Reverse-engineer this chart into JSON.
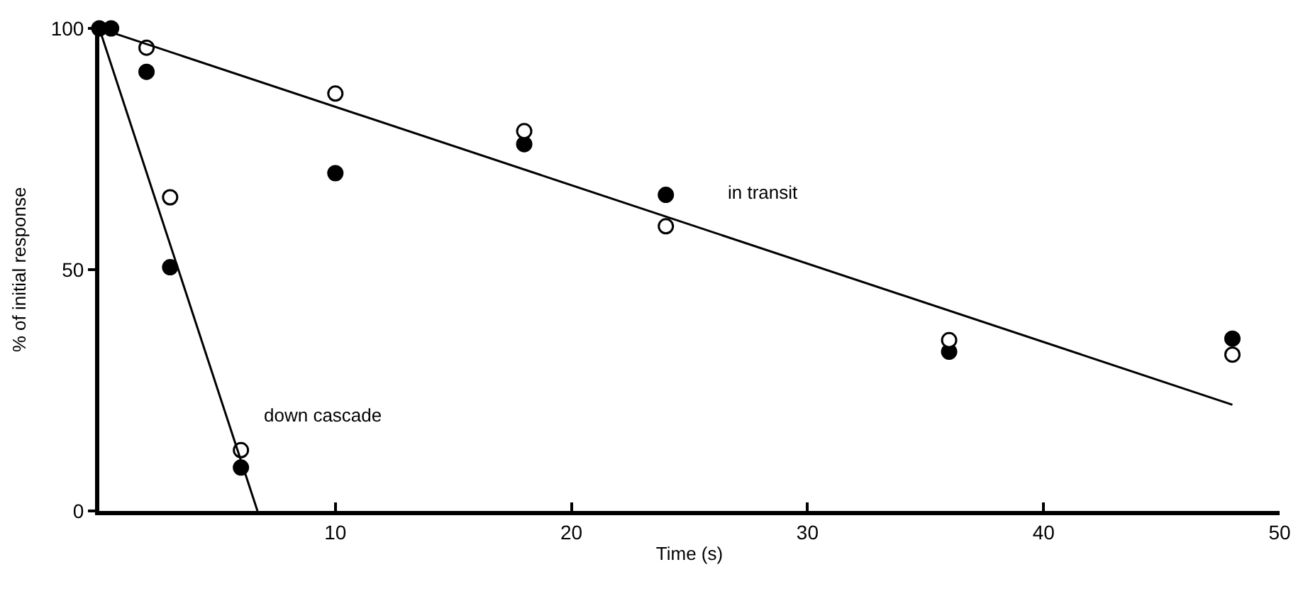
{
  "chart_data": {
    "type": "scatter",
    "xlabel": "Time (s)",
    "ylabel": "% of initial response",
    "xlim": [
      0,
      50
    ],
    "xticks": [
      10,
      20,
      30,
      40,
      50
    ],
    "ylim": [
      0,
      100
    ],
    "yticks": [
      0,
      50,
      100
    ],
    "legend": false,
    "series": [
      {
        "marker": "circle",
        "color": "#000000",
        "x": [
          0,
          0.5,
          2,
          3,
          6,
          10,
          18,
          24,
          36,
          48
        ],
        "values": [
          100,
          100,
          91,
          50.5,
          9,
          70,
          76,
          65.5,
          33,
          35.7
        ]
      },
      {
        "marker": "circle",
        "color": "#ffffff",
        "x": [
          2,
          3,
          6,
          10,
          18,
          24,
          36,
          48
        ],
        "values": [
          96,
          65,
          12.6,
          86.5,
          78.7,
          59,
          35.4,
          32.4
        ]
      },
      {
        "type": "line",
        "name": "in transit",
        "color": "#000000",
        "line_style": "solid",
        "x": [
          0,
          48
        ],
        "values": [
          100,
          22
        ]
      },
      {
        "type": "line",
        "name": "down cascade",
        "color": "#000000",
        "line_style": "solid",
        "x": [
          0,
          6.7
        ],
        "values": [
          100,
          0
        ]
      }
    ]
  }
}
